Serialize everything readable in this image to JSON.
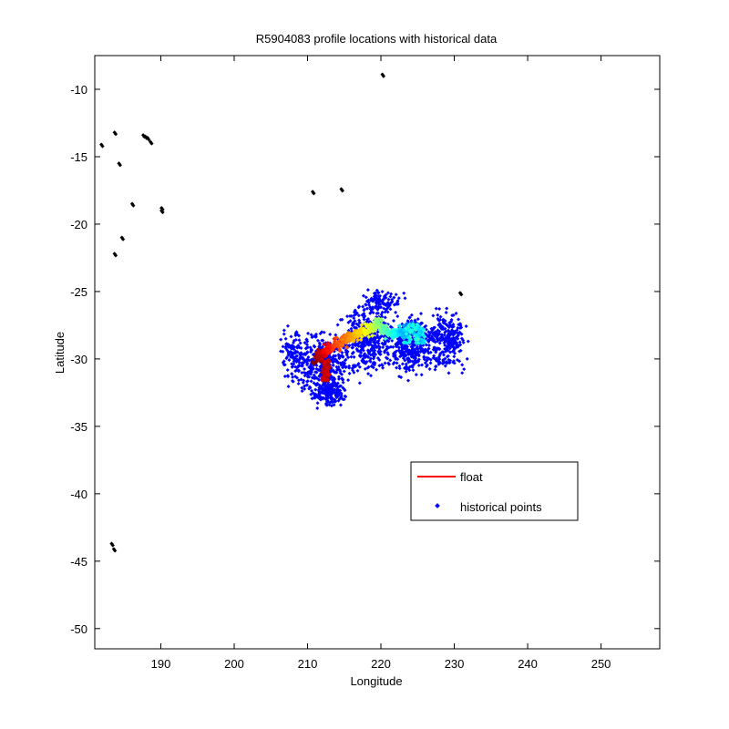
{
  "chart_data": {
    "type": "scatter",
    "title": "R5904083 profile locations with historical data",
    "xlabel": "Longitude",
    "ylabel": "Latitude",
    "xlim": [
      181,
      258
    ],
    "ylim": [
      -51.5,
      -7.5
    ],
    "xticks": [
      190,
      200,
      210,
      220,
      230,
      240,
      250
    ],
    "yticks": [
      -10,
      -15,
      -20,
      -25,
      -30,
      -35,
      -40,
      -45,
      -50
    ],
    "grid": false,
    "legend": {
      "placement": "lower-right",
      "entries": [
        {
          "label": "float",
          "color": "#ff0000",
          "marker": "line"
        },
        {
          "label": "historical points",
          "color": "#0000ff",
          "marker": "point"
        }
      ]
    },
    "colors": {
      "historical": "#0000ff",
      "other_points": "#000000",
      "float_colormap": "jet"
    },
    "float_track": {
      "lon": [
        211.0,
        212.0,
        213.0,
        214.5,
        216.0,
        217.5,
        218.8,
        219.8,
        221.0,
        222.3,
        223.2,
        224.0,
        225.0,
        225.6
      ],
      "lat": [
        -30.0,
        -29.6,
        -29.2,
        -28.8,
        -28.4,
        -28.0,
        -27.7,
        -27.3,
        -28.0,
        -28.2,
        -28.0,
        -27.6,
        -27.9,
        -28.3
      ]
    },
    "float_cluster": {
      "lon": [
        212,
        213
      ],
      "lat": [
        -31.5,
        -31.2
      ]
    },
    "black_points": [
      {
        "lon": 220.2,
        "lat": -8.9
      },
      {
        "lon": 181.9,
        "lat": -14.1
      },
      {
        "lon": 183.7,
        "lat": -13.2
      },
      {
        "lon": 184.3,
        "lat": -15.5
      },
      {
        "lon": 187.6,
        "lat": -13.4
      },
      {
        "lon": 188.2,
        "lat": -13.6
      },
      {
        "lon": 188.6,
        "lat": -13.9
      },
      {
        "lon": 187.9,
        "lat": -13.5
      },
      {
        "lon": 186.1,
        "lat": -18.5
      },
      {
        "lon": 190.1,
        "lat": -18.8
      },
      {
        "lon": 190.1,
        "lat": -19.0
      },
      {
        "lon": 184.7,
        "lat": -21.0
      },
      {
        "lon": 183.7,
        "lat": -22.2
      },
      {
        "lon": 210.7,
        "lat": -17.6
      },
      {
        "lon": 214.6,
        "lat": -17.4
      },
      {
        "lon": 230.8,
        "lat": -25.1
      },
      {
        "lon": 183.3,
        "lat": -43.7
      },
      {
        "lon": 183.6,
        "lat": -44.1
      }
    ],
    "historical_region": {
      "lon_range": [
        205.5,
        234.0
      ],
      "lat_range": [
        -34.0,
        -24.0
      ],
      "approx_count": 1800
    }
  }
}
